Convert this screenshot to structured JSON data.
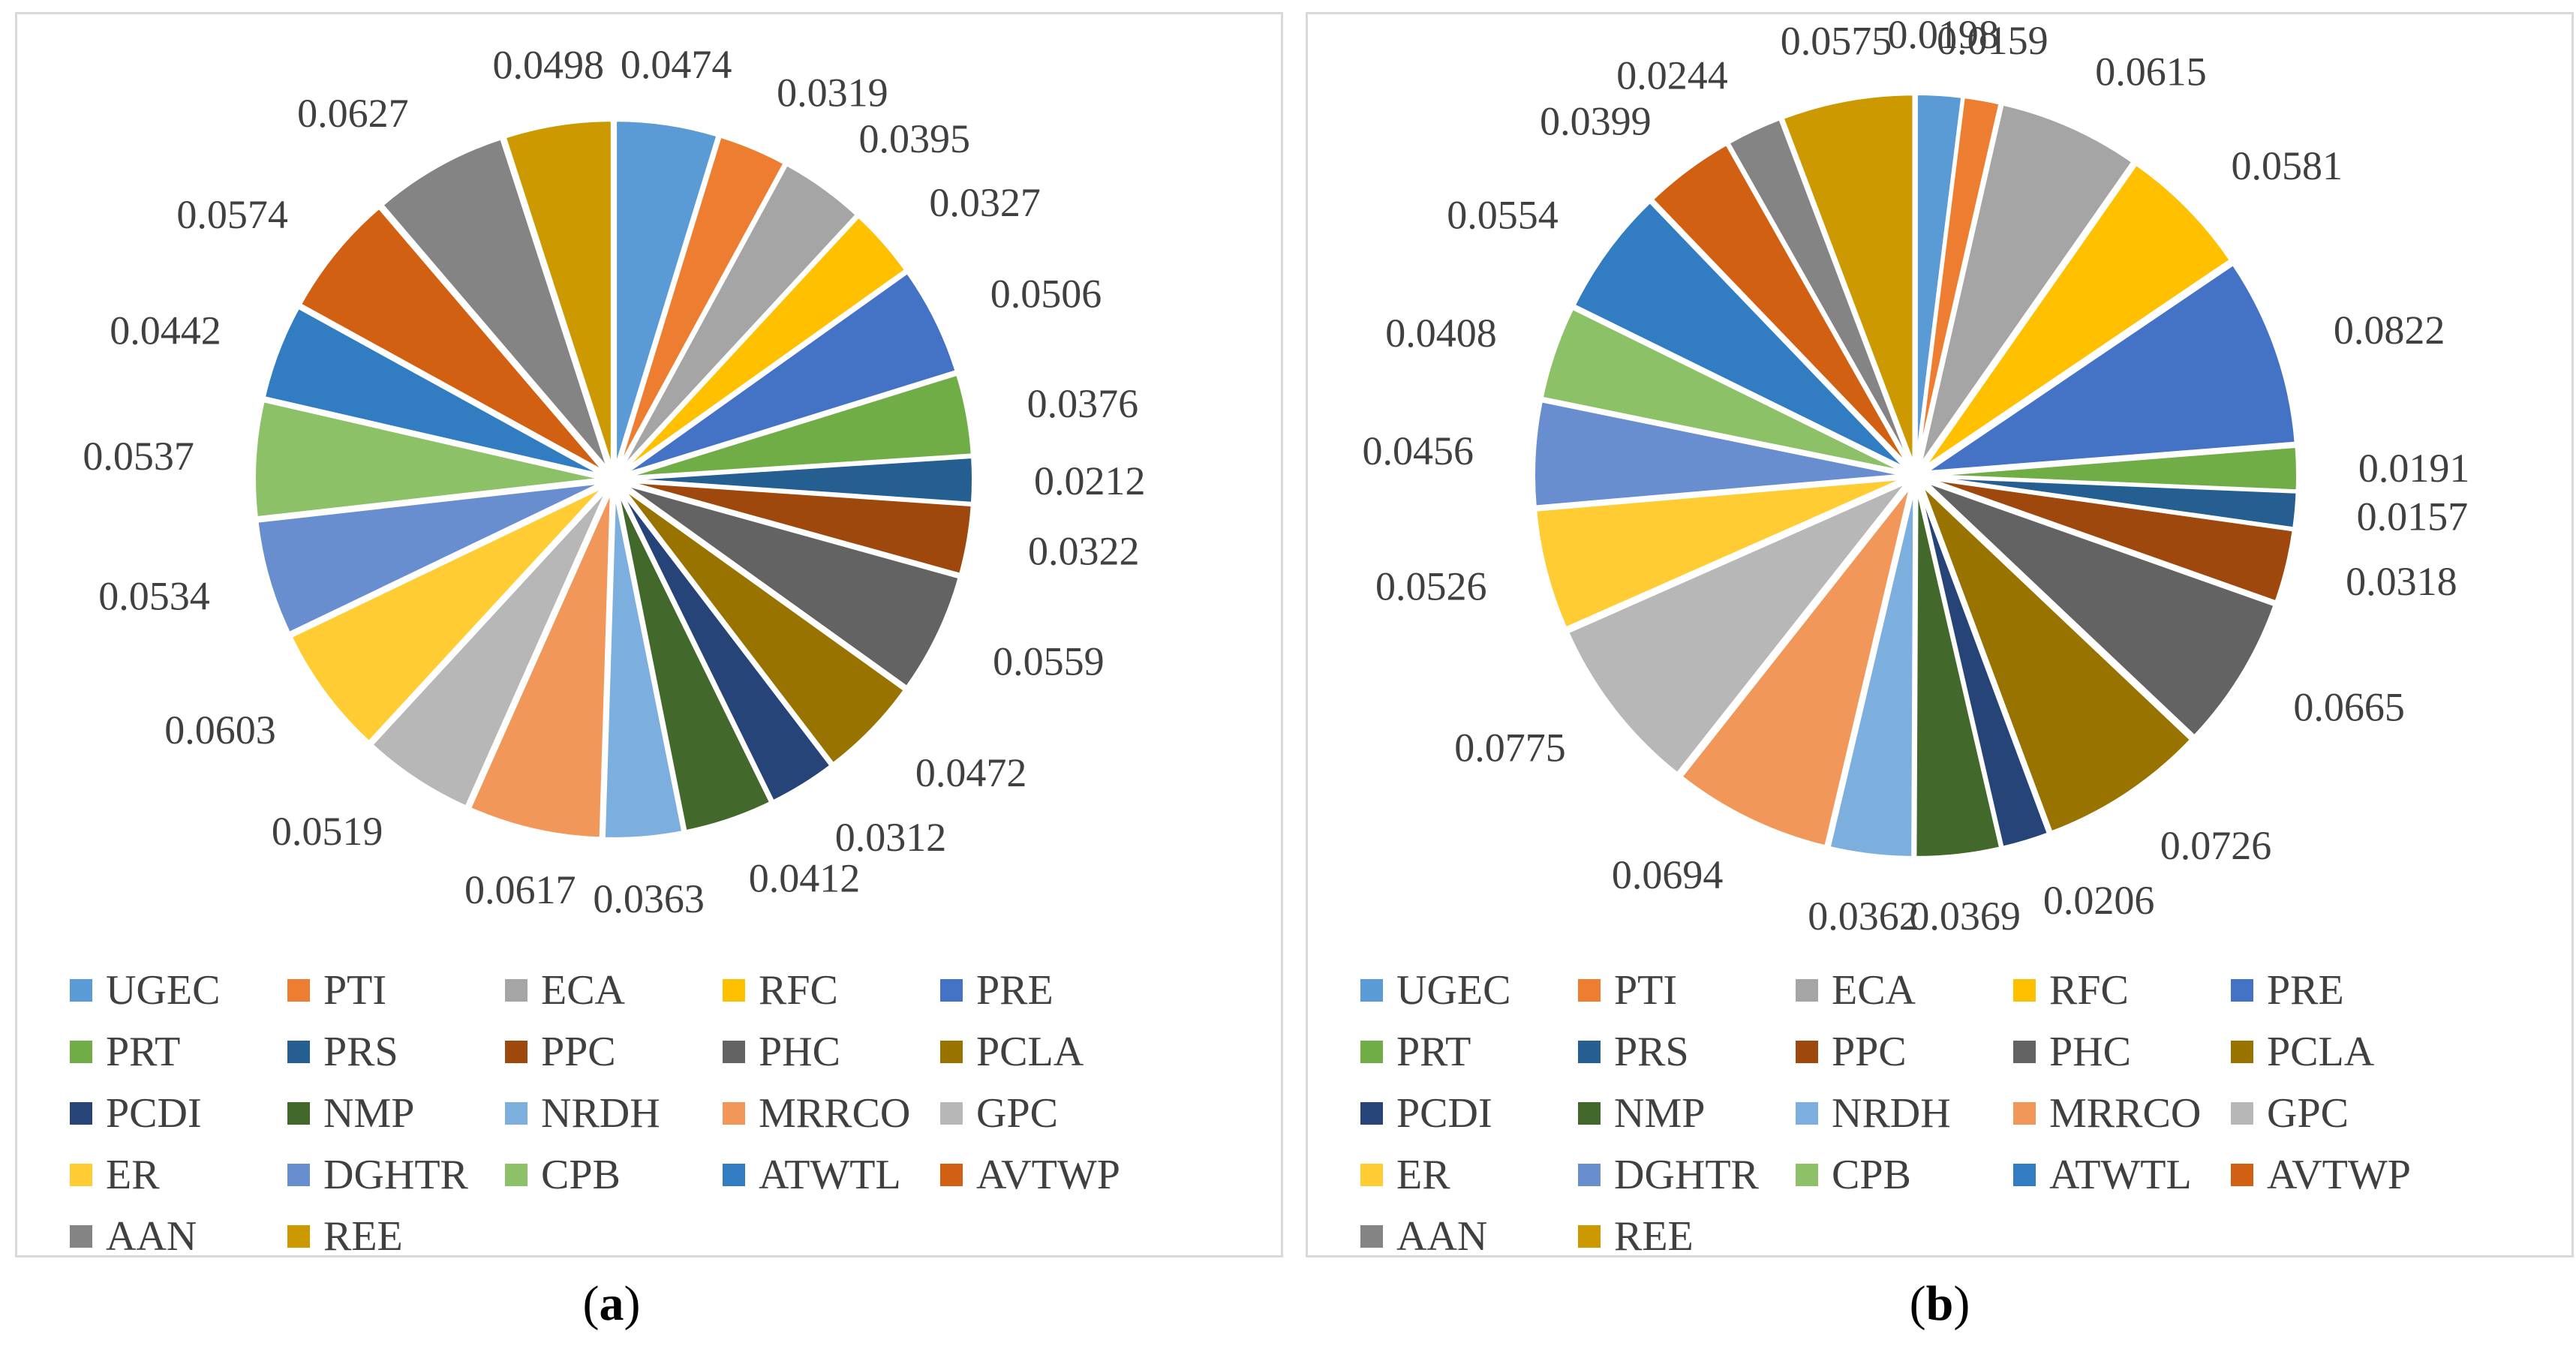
{
  "chart_data": [
    {
      "type": "pie",
      "panel": "a",
      "caption": "a",
      "categories": [
        "UGEC",
        "PTI",
        "ECA",
        "RFC",
        "PRE",
        "PRT",
        "PRS",
        "PPC",
        "PHC",
        "PCLA",
        "PCDI",
        "NMP",
        "NRDH",
        "MRRCO",
        "GPC",
        "ER",
        "DGHTR",
        "CPB",
        "ATWTL",
        "AVTWP",
        "AAN",
        "REE"
      ],
      "values": [
        0.0474,
        0.0319,
        0.0395,
        0.0327,
        0.0506,
        0.0376,
        0.0212,
        0.0322,
        0.0559,
        0.0472,
        0.0312,
        0.0412,
        0.0363,
        0.0617,
        0.0519,
        0.0603,
        0.0534,
        0.0537,
        0.0442,
        0.0574,
        0.0627,
        0.0498
      ],
      "labels": [
        "0.0474",
        "0.0319",
        "0.0395",
        "0.0327",
        "0.0506",
        "0.0376",
        "0.0212",
        "0.0322",
        "0.0559",
        "0.0472",
        "0.0312",
        "0.0412",
        "0.0363",
        "0.0617",
        "0.0519",
        "0.0603",
        "0.0534",
        "0.0537",
        "0.0442",
        "0.0574",
        "0.0627",
        "0.0498"
      ],
      "legend": "bottom"
    },
    {
      "type": "pie",
      "panel": "b",
      "caption": "b",
      "categories": [
        "UGEC",
        "PTI",
        "ECA",
        "RFC",
        "PRE",
        "PRT",
        "PRS",
        "PPC",
        "PHC",
        "PCLA",
        "PCDI",
        "NMP",
        "NRDH",
        "MRRCO",
        "GPC",
        "ER",
        "DGHTR",
        "CPB",
        "ATWTL",
        "AVTWP",
        "AAN",
        "REE"
      ],
      "values": [
        0.0198,
        0.0159,
        0.0615,
        0.0581,
        0.0822,
        0.0191,
        0.0157,
        0.0318,
        0.0665,
        0.0726,
        0.0206,
        0.0369,
        0.0362,
        0.0694,
        0.0775,
        0.0526,
        0.0456,
        0.0408,
        0.0554,
        0.0399,
        0.0244,
        0.0575
      ],
      "labels": [
        "0.0198",
        "0.0159",
        "0.0615",
        "0.0581",
        "0.0822",
        "0.0191",
        "0.0157",
        "0.0318",
        "0.0665",
        "0.0726",
        "0.0206",
        "0.0369",
        "0.0362",
        "0.0694",
        "0.0775",
        "0.0526",
        "0.0456",
        "0.0408",
        "0.0554",
        "0.0399",
        "0.0244",
        "0.0575"
      ],
      "legend": "bottom"
    }
  ],
  "colors": [
    "#5b9bd5",
    "#ed7d31",
    "#a5a5a5",
    "#ffc000",
    "#4472c4",
    "#70ad47",
    "#255e91",
    "#9e480e",
    "#636363",
    "#997300",
    "#264478",
    "#43682b",
    "#7cafdd",
    "#f1975a",
    "#b7b7b7",
    "#ffcd33",
    "#698ed0",
    "#8cc168",
    "#327dc2",
    "#d26012",
    "#848484",
    "#cc9a00"
  ],
  "captions": {
    "a_open": "(",
    "a_letter": "a",
    "a_close": ")",
    "b_open": "(",
    "b_letter": "b",
    "b_close": ")"
  }
}
